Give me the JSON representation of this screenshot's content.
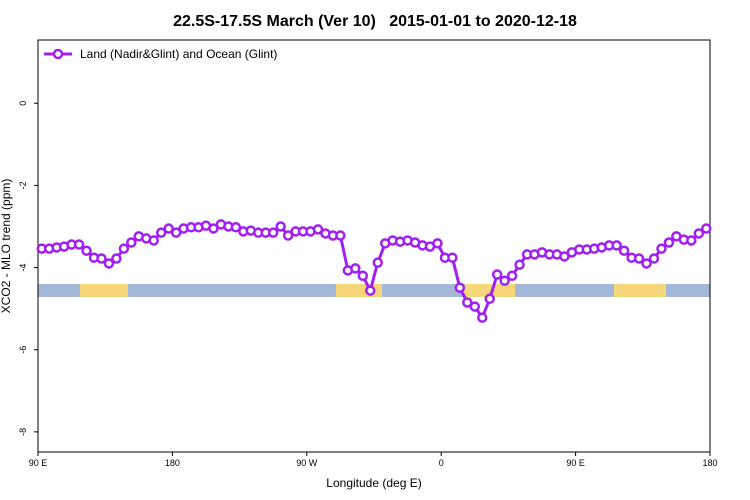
{
  "chart_data": {
    "type": "line",
    "title": "22.5S-17.5S March (Ver 10)   2015-01-01 to 2020-12-18",
    "x_label": "Longitude (deg E)",
    "y_label": "XCO2 - MLO trend (ppm)",
    "xlim": [
      90,
      540
    ],
    "ylim": [
      -8.49,
      1.54
    ],
    "xticks": [
      {
        "value": 90,
        "label": "90 E"
      },
      180,
      {
        "value": 270,
        "label": "90 W"
      },
      {
        "value": 360,
        "label": "0"
      },
      {
        "value": 450,
        "label": "90 E"
      },
      {
        "value": 540,
        "label": "180"
      }
    ],
    "yticks": [
      0,
      -2,
      -4,
      -6,
      -8
    ],
    "legend": "top-left",
    "x": [
      92.5,
      97.5,
      102.5,
      107.5,
      112.5,
      117.5,
      122.5,
      127.5,
      132.5,
      137.5,
      142.5,
      147.5,
      152.5,
      157.5,
      162.5,
      167.5,
      172.5,
      177.5,
      182.5,
      187.5,
      192.5,
      197.5,
      202.5,
      207.5,
      212.5,
      217.5,
      222.5,
      227.5,
      232.5,
      237.5,
      242.5,
      247.5,
      252.5,
      257.5,
      262.5,
      267.5,
      272.5,
      277.5,
      282.5,
      287.5,
      292.5,
      297.5,
      302.5,
      307.5,
      312.5,
      317.5,
      322.5,
      327.5,
      332.5,
      337.5,
      342.5,
      347.5,
      352.5,
      357.5,
      362.5,
      367.5,
      372.5,
      377.5,
      382.5,
      387.5,
      392.5,
      397.5,
      402.5,
      407.5,
      412.5,
      417.5,
      422.5,
      427.5,
      432.5,
      437.5,
      442.5,
      447.5,
      452.5,
      457.5,
      462.5,
      467.5,
      472.5,
      477.5,
      482.5,
      487.5,
      492.5,
      497.5,
      502.5,
      507.5,
      512.5,
      517.5,
      522.5,
      527.5,
      532.5,
      537.5
    ],
    "series": [
      {
        "name": "Land (Nadir&Glint) and Ocean (Glint)",
        "color": "#a020f0",
        "values": [
          -3.54,
          -3.54,
          -3.51,
          -3.49,
          -3.44,
          -3.44,
          -3.59,
          -3.76,
          -3.78,
          -3.9,
          -3.78,
          -3.54,
          -3.39,
          -3.24,
          -3.29,
          -3.34,
          -3.15,
          -3.05,
          -3.15,
          -3.05,
          -3.02,
          -3.02,
          -2.98,
          -3.05,
          -2.95,
          -3.0,
          -3.02,
          -3.12,
          -3.1,
          -3.15,
          -3.15,
          -3.15,
          -3.0,
          -3.22,
          -3.12,
          -3.12,
          -3.12,
          -3.07,
          -3.17,
          -3.22,
          -3.22,
          -4.07,
          -4.02,
          -4.2,
          -4.56,
          -3.88,
          -3.41,
          -3.34,
          -3.37,
          -3.34,
          -3.39,
          -3.46,
          -3.49,
          -3.41,
          -3.76,
          -3.76,
          -4.49,
          -4.85,
          -4.95,
          -5.22,
          -4.76,
          -4.17,
          -4.32,
          -4.2,
          -3.93,
          -3.68,
          -3.68,
          -3.63,
          -3.68,
          -3.68,
          -3.73,
          -3.63,
          -3.56,
          -3.56,
          -3.54,
          -3.51,
          -3.46,
          -3.46,
          -3.59,
          -3.76,
          -3.78,
          -3.9,
          -3.78,
          -3.54,
          -3.39,
          -3.24,
          -3.32,
          -3.34,
          -3.17,
          -3.05
        ]
      }
    ]
  }
}
